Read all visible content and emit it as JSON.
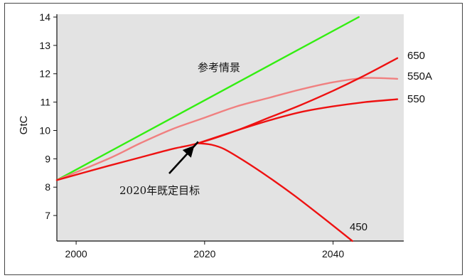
{
  "chart_data": {
    "type": "line",
    "ylabel": "GtC",
    "xlim": [
      1997,
      2051
    ],
    "ylim": [
      6.1,
      14.1
    ],
    "x_ticks": [
      2000,
      2020,
      2040
    ],
    "y_ticks": [
      7,
      8,
      9,
      10,
      11,
      12,
      13,
      14
    ],
    "grid": false,
    "series": [
      {
        "name": "参考情景",
        "color": "#33ee11",
        "x": [
          1997,
          2044
        ],
        "y": [
          8.25,
          14.0
        ]
      },
      {
        "name": "550A",
        "color": "#f08080",
        "x": [
          1997,
          2005,
          2010,
          2015,
          2020,
          2025,
          2030,
          2035,
          2040,
          2045,
          2050
        ],
        "y": [
          8.25,
          9.0,
          9.55,
          10.05,
          10.45,
          10.85,
          11.15,
          11.45,
          11.7,
          11.85,
          11.82
        ]
      },
      {
        "name": "650",
        "color": "#ee1111",
        "x": [
          1997,
          2005,
          2010,
          2015,
          2019,
          2025,
          2030,
          2035,
          2040,
          2045,
          2050
        ],
        "y": [
          8.25,
          8.75,
          9.05,
          9.35,
          9.55,
          10.0,
          10.45,
          10.9,
          11.4,
          11.95,
          12.55
        ]
      },
      {
        "name": "550",
        "color": "#ee1111",
        "x": [
          2019,
          2025,
          2030,
          2035,
          2040,
          2045,
          2050
        ],
        "y": [
          9.55,
          10.0,
          10.35,
          10.65,
          10.85,
          11.0,
          11.1
        ]
      },
      {
        "name": "450",
        "color": "#ee1111",
        "x": [
          2019,
          2021,
          2023,
          2026,
          2030,
          2034,
          2038,
          2043
        ],
        "y": [
          9.55,
          9.5,
          9.35,
          8.95,
          8.35,
          7.7,
          7.0,
          6.1
        ]
      }
    ],
    "annotations": [
      {
        "text": "2020年既定目标",
        "points_to": [
          2019,
          9.55
        ]
      }
    ]
  }
}
